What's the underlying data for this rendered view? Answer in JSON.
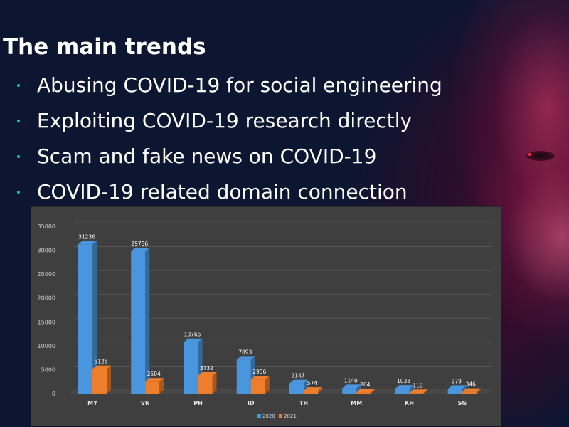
{
  "slide": {
    "title": "The main trends",
    "bullets": [
      "Abusing COVID-19 for social engineering",
      "Exploiting COVID-19 research directly",
      "Scam and fake news on COVID-19",
      "COVID-19 related domain connection"
    ],
    "accent_color": "#19c5a8",
    "background_color": "#0b1530"
  },
  "chart_data": {
    "type": "bar",
    "title": "",
    "xlabel": "",
    "ylabel": "",
    "categories": [
      "MY",
      "VN",
      "PH",
      "ID",
      "TH",
      "MM",
      "KH",
      "SG"
    ],
    "series": [
      {
        "name": "2020",
        "color": "#4a96de",
        "values": [
          31236,
          29786,
          10765,
          7093,
          2147,
          1140,
          1033,
          979
        ]
      },
      {
        "name": "2021",
        "color": "#ee7d2c",
        "values": [
          5125,
          2504,
          3732,
          2956,
          574,
          264,
          110,
          346
        ]
      }
    ],
    "ylim": [
      0,
      35000
    ],
    "yticks": [
      "0",
      "5000",
      "10000",
      "15000",
      "20000",
      "25000",
      "30000",
      "35000"
    ],
    "grid": true,
    "legend_position": "bottom",
    "data_labels": true,
    "style": "3d"
  }
}
